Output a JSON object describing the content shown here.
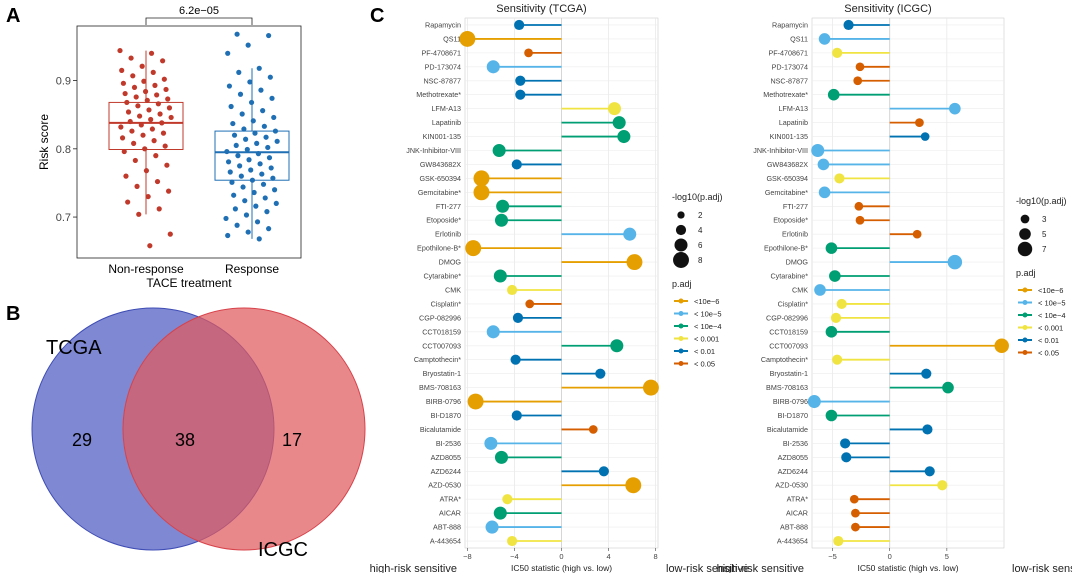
{
  "panels": {
    "A": {
      "label": "A",
      "chart_data": {
        "type": "boxplot-jitter",
        "ylabel": "Risk score",
        "xlabel": "TACE treatment",
        "ylim": [
          0.64,
          0.98
        ],
        "yticks": [
          0.7,
          0.8,
          0.9
        ],
        "ytick_labels": [
          "0.7",
          "0.8",
          "0.9"
        ],
        "pvalue": "6.2e−05",
        "groups": [
          {
            "name": "Non-response",
            "color": "#c0392b",
            "q1": 0.799,
            "median": 0.838,
            "q3": 0.868,
            "whisker_low": 0.704,
            "whisker_high": 0.944,
            "points": [
              0.944,
              0.94,
              0.933,
              0.929,
              0.921,
              0.915,
              0.912,
              0.907,
              0.902,
              0.899,
              0.896,
              0.893,
              0.89,
              0.887,
              0.884,
              0.881,
              0.879,
              0.876,
              0.873,
              0.871,
              0.868,
              0.866,
              0.863,
              0.86,
              0.857,
              0.854,
              0.851,
              0.848,
              0.846,
              0.843,
              0.84,
              0.838,
              0.835,
              0.832,
              0.829,
              0.826,
              0.823,
              0.82,
              0.816,
              0.812,
              0.808,
              0.804,
              0.8,
              0.796,
              0.79,
              0.783,
              0.776,
              0.768,
              0.76,
              0.752,
              0.745,
              0.738,
              0.73,
              0.722,
              0.712,
              0.704,
              0.675,
              0.658
            ]
          },
          {
            "name": "Response",
            "color": "#1f6fb4",
            "q1": 0.754,
            "median": 0.795,
            "q3": 0.826,
            "whisker_low": 0.668,
            "whisker_high": 0.918,
            "points": [
              0.968,
              0.966,
              0.952,
              0.94,
              0.918,
              0.912,
              0.905,
              0.898,
              0.892,
              0.886,
              0.88,
              0.874,
              0.868,
              0.862,
              0.856,
              0.851,
              0.846,
              0.841,
              0.837,
              0.833,
              0.829,
              0.826,
              0.823,
              0.82,
              0.817,
              0.814,
              0.811,
              0.808,
              0.805,
              0.802,
              0.799,
              0.796,
              0.793,
              0.79,
              0.787,
              0.784,
              0.781,
              0.778,
              0.775,
              0.772,
              0.769,
              0.766,
              0.763,
              0.76,
              0.757,
              0.754,
              0.751,
              0.748,
              0.744,
              0.74,
              0.736,
              0.732,
              0.728,
              0.724,
              0.72,
              0.716,
              0.712,
              0.708,
              0.703,
              0.698,
              0.693,
              0.688,
              0.683,
              0.678,
              0.673,
              0.668
            ]
          }
        ]
      }
    },
    "B": {
      "label": "B",
      "chart_data": {
        "type": "venn",
        "sets": [
          {
            "name": "TCGA",
            "color": "#5a67c6",
            "only": 29
          },
          {
            "name": "ICGC",
            "color": "#e05a5e",
            "only": 17
          }
        ],
        "intersection": 38
      }
    },
    "C": {
      "label": "C",
      "legend": {
        "size_title": "-log10(p.adj)",
        "color_title": "p.adj",
        "color_levels": [
          {
            "label": "<10e−6",
            "color": "#E69F00"
          },
          {
            "label": "< 10e−5",
            "color": "#56B4E9"
          },
          {
            "label": "< 10e−4",
            "color": "#009E73"
          },
          {
            "label": "< 0.001",
            "color": "#F0E442"
          },
          {
            "label": "< 0.01",
            "color": "#0072B2"
          },
          {
            "label": "< 0.05",
            "color": "#D55E00"
          }
        ]
      },
      "chart_data": [
        {
          "type": "lollipop",
          "title": "Sensitivity (TCGA)",
          "xlabel": "IC50 statistic (high vs. low)",
          "left_note": "high-risk sensitive",
          "right_note": "low-risk sensitive",
          "xlim": [
            -8.2,
            8.2
          ],
          "xticks": [
            -8,
            -4,
            0,
            4,
            8
          ],
          "xtick_labels": [
            "−8",
            "−4",
            "0",
            "4",
            "8"
          ],
          "size_legend_values": [
            2,
            4,
            6,
            8
          ],
          "drugs": [
            "Rapamycin",
            "QS11",
            "PF-4708671",
            "PD-173074",
            "NSC-87877",
            "Methotrexate*",
            "LFM-A13",
            "Lapatinib",
            "KIN001-135",
            "JNK-Inhibitor-VIII",
            "GW843682X",
            "GSK-650394",
            "Gemcitabine*",
            "FTI-277",
            "Etoposide*",
            "Erlotinib",
            "Epothilone-B*",
            "DMOG",
            "Cytarabine*",
            "CMK",
            "Cisplatin*",
            "CGP-082996",
            "CCT018159",
            "CCT007093",
            "Camptothecin*",
            "Bryostatin-1",
            "BMS-708163",
            "BIRB-0796",
            "BI-D1870",
            "Bicalutamide",
            "BI-2536",
            "AZD8055",
            "AZD6244",
            "AZD-0530",
            "ATRA*",
            "AICAR",
            "ABT-888",
            "A-443654"
          ],
          "values": [
            -3.6,
            -8.0,
            -2.8,
            -5.8,
            -3.5,
            -3.5,
            4.5,
            4.9,
            5.3,
            -5.3,
            -3.8,
            -6.8,
            -6.8,
            -5.0,
            -5.1,
            5.8,
            -7.5,
            6.2,
            -5.2,
            -4.2,
            -2.7,
            -3.7,
            -5.8,
            4.7,
            -3.9,
            3.3,
            7.6,
            -7.3,
            -3.8,
            2.7,
            -6.0,
            -5.1,
            3.6,
            6.1,
            -4.6,
            -5.2,
            -5.9,
            -4.2
          ],
          "sizes": [
            4,
            8,
            3,
            6,
            4,
            4,
            6,
            6,
            6,
            6,
            4,
            8,
            8,
            6,
            6,
            6,
            8,
            8,
            6,
            4,
            3,
            4,
            6,
            6,
            4,
            4,
            8,
            8,
            4,
            3,
            6,
            6,
            4,
            8,
            4,
            6,
            6,
            4
          ],
          "levels": [
            4,
            0,
            5,
            1,
            4,
            4,
            3,
            2,
            2,
            2,
            4,
            0,
            0,
            2,
            2,
            1,
            0,
            0,
            2,
            3,
            5,
            4,
            1,
            2,
            4,
            4,
            0,
            0,
            4,
            5,
            1,
            2,
            4,
            0,
            3,
            2,
            1,
            3
          ]
        },
        {
          "type": "lollipop",
          "title": "Sensitivity (ICGC)",
          "xlabel": "IC50 statistic (high vs. low)",
          "left_note": "high-risk sensitive",
          "right_note": "low-risk sensitive",
          "xlim": [
            -6.8,
            10.0
          ],
          "xticks": [
            -5,
            0,
            5
          ],
          "xtick_labels": [
            "−5",
            "0",
            "5"
          ],
          "size_legend_values": [
            3,
            5,
            7
          ],
          "drugs": [
            "Rapamycin",
            "QS11",
            "PF-4708671",
            "PD-173074",
            "NSC-87877",
            "Methotrexate*",
            "LFM-A13",
            "Lapatinib",
            "KIN001-135",
            "JNK-Inhibitor-VIII",
            "GW843682X",
            "GSK-650394",
            "Gemcitabine*",
            "FTI-277",
            "Etoposide*",
            "Erlotinib",
            "Epothilone-B*",
            "DMOG",
            "Cytarabine*",
            "CMK",
            "Cisplatin*",
            "CGP-082996",
            "CCT018159",
            "CCT007093",
            "Camptothecin*",
            "Bryostatin-1",
            "BMS-708163",
            "BIRB-0796",
            "BI-D1870",
            "Bicalutamide",
            "BI-2536",
            "AZD8055",
            "AZD6244",
            "AZD-0530",
            "ATRA*",
            "AICAR",
            "ABT-888",
            "A-443654"
          ],
          "values": [
            -3.6,
            -5.7,
            -4.6,
            -2.6,
            -2.8,
            -4.9,
            5.7,
            2.6,
            3.1,
            -6.3,
            -5.8,
            -4.4,
            -5.7,
            -2.7,
            -2.6,
            2.4,
            -5.1,
            5.7,
            -4.8,
            -6.1,
            -4.2,
            -4.7,
            -5.1,
            9.8,
            -4.6,
            3.2,
            5.1,
            -6.6,
            -5.1,
            3.3,
            -3.9,
            -3.8,
            3.5,
            4.6,
            -3.1,
            -3.0,
            -3.0,
            -4.5
          ],
          "sizes": [
            4,
            5,
            4,
            3,
            3,
            5,
            5,
            3,
            3,
            6,
            5,
            4,
            5,
            3,
            3,
            3,
            5,
            7,
            5,
            5,
            4,
            4,
            5,
            7,
            4,
            4,
            5,
            6,
            5,
            4,
            4,
            4,
            4,
            4,
            3,
            3,
            3,
            4
          ],
          "levels": [
            4,
            1,
            3,
            5,
            5,
            2,
            1,
            5,
            4,
            1,
            1,
            3,
            1,
            5,
            5,
            5,
            2,
            1,
            2,
            1,
            3,
            3,
            2,
            0,
            3,
            4,
            2,
            1,
            2,
            4,
            4,
            4,
            4,
            3,
            5,
            5,
            5,
            3
          ]
        }
      ]
    }
  }
}
